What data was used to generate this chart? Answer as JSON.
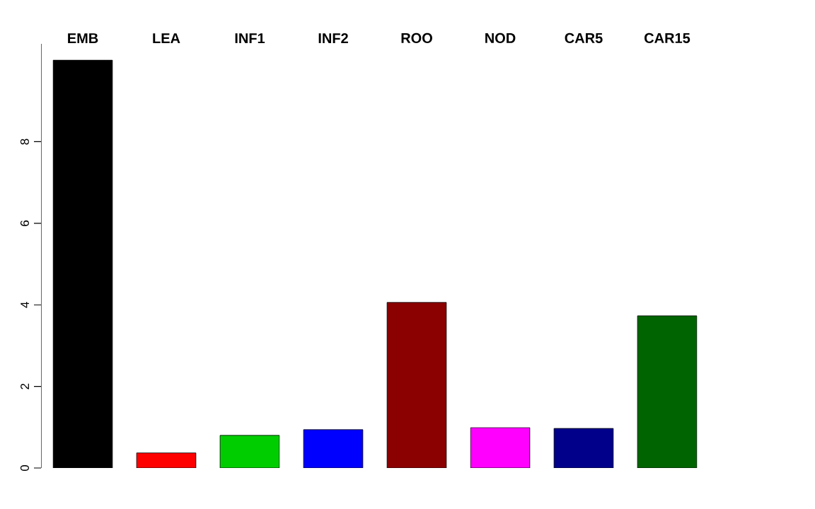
{
  "chart_data": {
    "type": "bar",
    "categories": [
      "EMB",
      "LEA",
      "INF1",
      "INF2",
      "ROO",
      "NOD",
      "CAR5",
      "CAR15"
    ],
    "values": [
      10.0,
      0.37,
      0.8,
      0.94,
      4.06,
      0.99,
      0.97,
      3.73
    ],
    "colors": [
      "#000000",
      "#ff0000",
      "#00cd00",
      "#0000ff",
      "#8b0000",
      "#ff00ff",
      "#00008b",
      "#006400"
    ],
    "ylim": [
      0,
      10.4
    ],
    "yticks": [
      0,
      2,
      4,
      6,
      8
    ],
    "grid": false
  }
}
